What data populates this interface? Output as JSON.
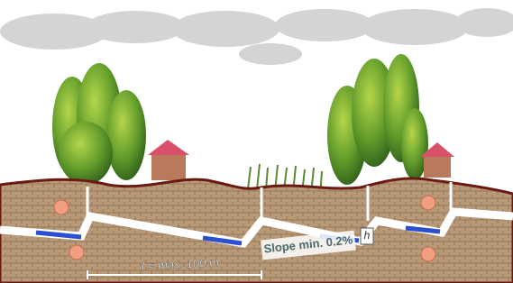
{
  "labels": {
    "length": "l = max. 100 m",
    "slope": "Slope min. 0.2%",
    "height": "h"
  }
}
